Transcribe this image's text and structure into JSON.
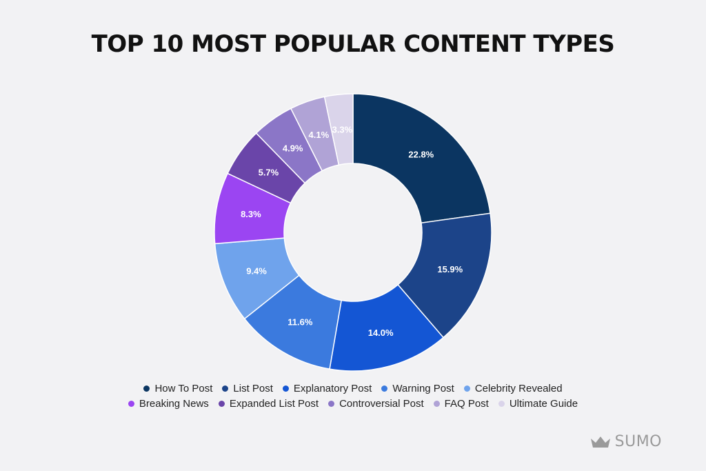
{
  "title": "TOP 10 MOST POPULAR CONTENT TYPES",
  "chart_data": {
    "type": "pie",
    "donut": true,
    "title": "TOP 10 MOST POPULAR CONTENT TYPES",
    "unit": "%",
    "categories": [
      "How To Post",
      "List Post",
      "Explanatory Post",
      "Warning Post",
      "Celebrity Revealed",
      "Breaking News",
      "Expanded List Post",
      "Controversial Post",
      "FAQ Post",
      "Ultimate Guide"
    ],
    "values": [
      22.8,
      15.9,
      14.0,
      11.6,
      9.4,
      8.3,
      5.7,
      4.9,
      4.1,
      3.3
    ],
    "labels": [
      "22.8%",
      "15.9%",
      "14.0%",
      "11.6%",
      "9.4%",
      "8.3%",
      "5.7%",
      "4.9%",
      "4.1%",
      "3.3%"
    ],
    "colors": [
      "#0b3561",
      "#1c4489",
      "#1456d4",
      "#3b7ade",
      "#6fa3ec",
      "#9b45f2",
      "#6a45a9",
      "#8b76c7",
      "#b0a3d6",
      "#dad4ea"
    ],
    "label_colors": [
      "#ffffff",
      "#ffffff",
      "#ffffff",
      "#ffffff",
      "#222222",
      "#ffffff",
      "#ffffff",
      "#222222",
      "#222222",
      "#222222"
    ],
    "legend": {
      "placement": "bottom",
      "rows": [
        [
          0,
          1,
          2,
          3,
          4
        ],
        [
          5,
          6,
          7,
          8,
          9
        ]
      ]
    }
  },
  "logo": {
    "text": "SUMO",
    "icon": "crown-icon",
    "color": "#9a9a9a"
  }
}
